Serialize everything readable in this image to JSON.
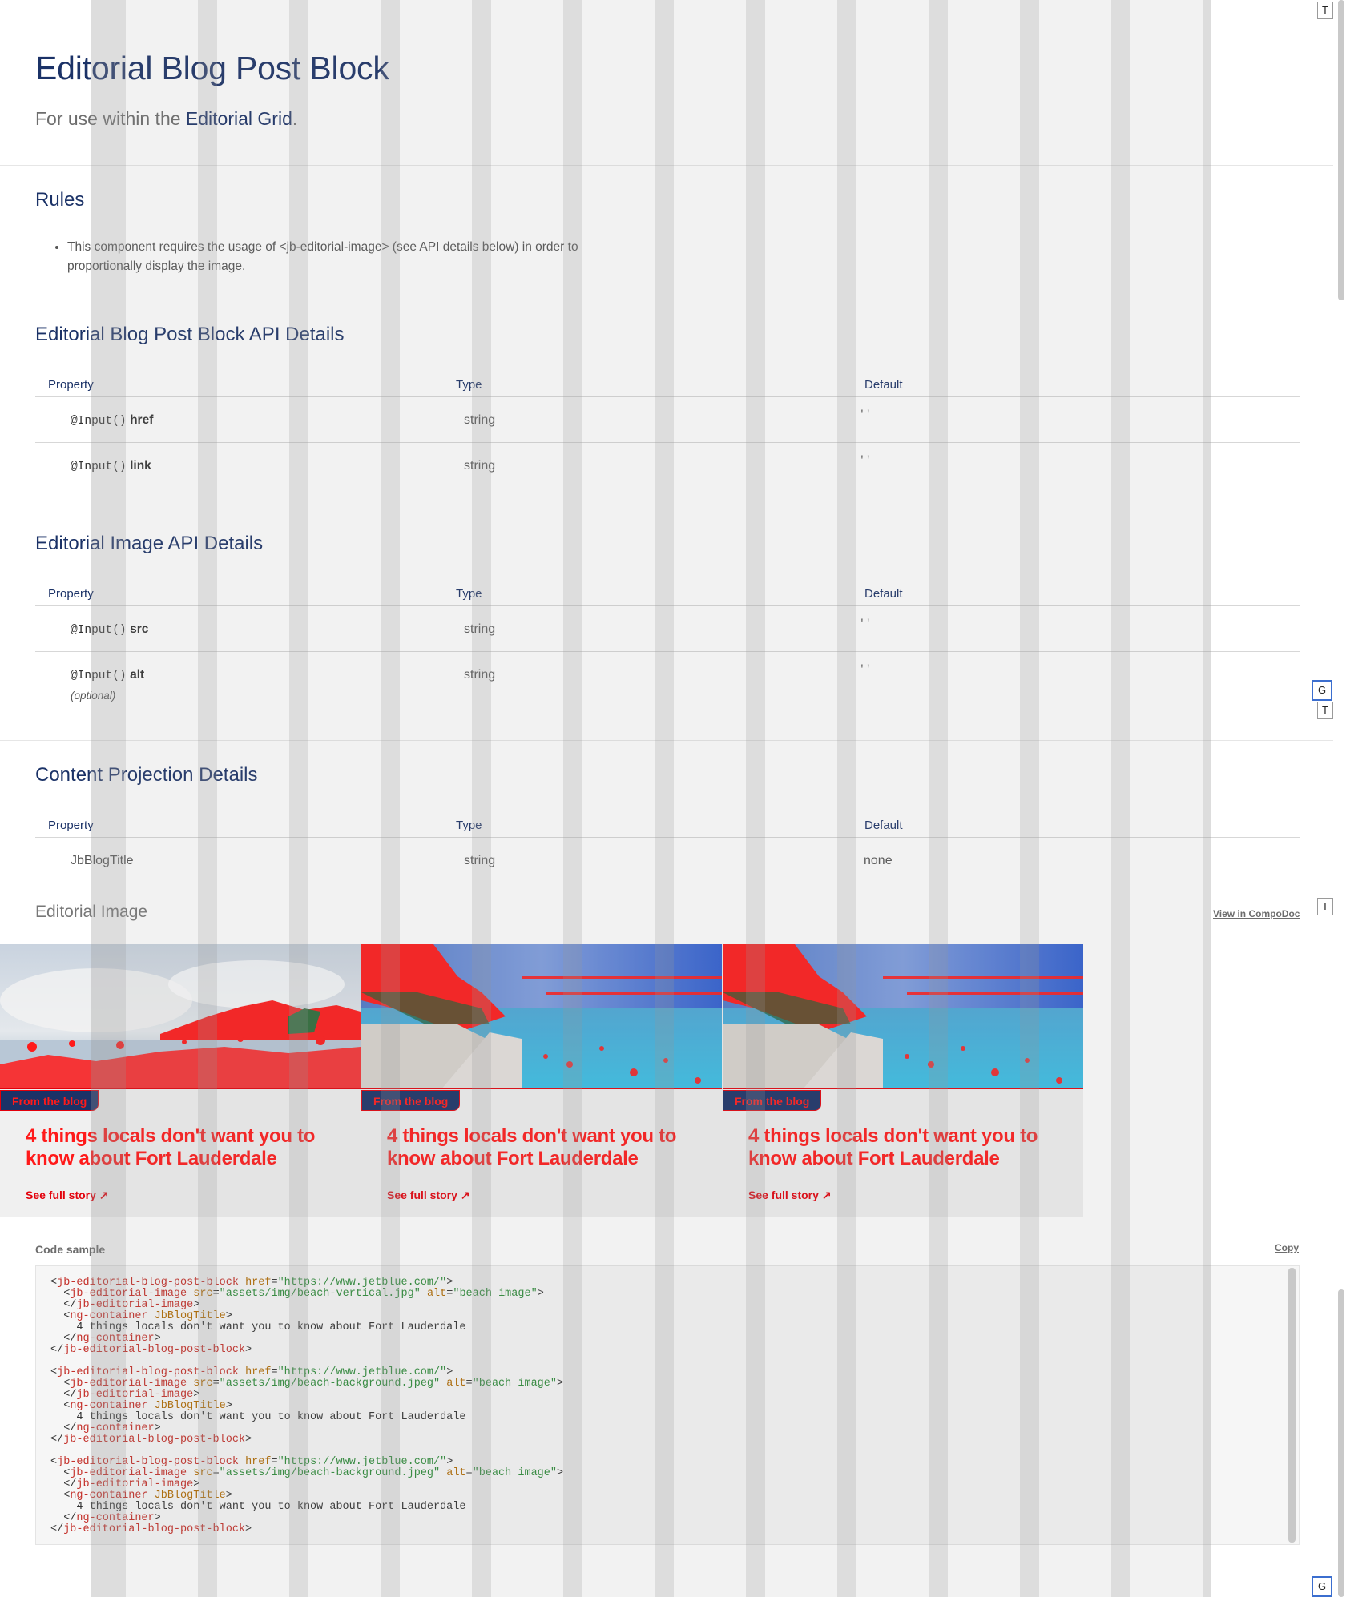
{
  "hero": {
    "title": "Editorial Blog Post Block",
    "subtitle_prefix": "For use within the ",
    "subtitle_link": "Editorial Grid",
    "subtitle_suffix": "."
  },
  "rules": {
    "title": "Rules",
    "items": [
      "This component requires the usage of <jb-editorial-image> (see API details below) in order to proportionally display the image."
    ]
  },
  "table_headers": {
    "property": "Property",
    "type": "Type",
    "default": "Default"
  },
  "blog_api": {
    "title": "Editorial Blog Post Block API Details",
    "rows": [
      {
        "decorator": "@Input()",
        "name": "href",
        "type": "string",
        "default": "''"
      },
      {
        "decorator": "@Input()",
        "name": "link",
        "type": "string",
        "default": "''"
      }
    ]
  },
  "image_api": {
    "title": "Editorial Image API Details",
    "rows": [
      {
        "decorator": "@Input()",
        "name": "src",
        "type": "string",
        "default": "''"
      },
      {
        "decorator": "@Input()",
        "name": "alt",
        "type": "string",
        "default": "''",
        "note": "(optional)"
      }
    ]
  },
  "projection": {
    "title": "Content Projection Details",
    "rows": [
      {
        "name": "JbBlogTitle",
        "type": "string",
        "default": "none"
      }
    ]
  },
  "demo": {
    "title": "Editorial Image",
    "compodoc_link": "View in CompoDoc",
    "cards": [
      {
        "badge": "From the blog",
        "title": "4 things locals don't want you to know about Fort Lauderdale",
        "cta": "See full story",
        "cta_icon": "arrow-up-right-icon"
      },
      {
        "badge": "From the blog",
        "title": "4 things locals don't want you to know about Fort Lauderdale",
        "cta": "See full story",
        "cta_icon": "arrow-up-right-icon"
      },
      {
        "badge": "From the blog",
        "title": "4 things locals don't want you to know about Fort Lauderdale",
        "cta": "See full story",
        "cta_icon": "arrow-up-right-icon"
      }
    ]
  },
  "code": {
    "label": "Code sample",
    "copy_label": "Copy"
  },
  "side_buttons": {
    "t": "T",
    "g": "G"
  },
  "colors": {
    "navy": "#1b3267",
    "red": "#e3000b",
    "gray_text": "#6d6d6d"
  }
}
